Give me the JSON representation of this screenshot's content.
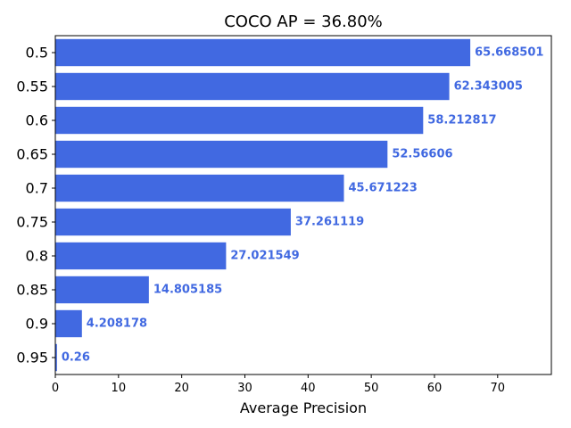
{
  "chart_data": {
    "type": "bar",
    "orientation": "horizontal",
    "title": "COCO AP = 36.80%",
    "xlabel": "Average Precision",
    "ylabel": "",
    "categories": [
      "0.5",
      "0.55",
      "0.6",
      "0.65",
      "0.7",
      "0.75",
      "0.8",
      "0.85",
      "0.9",
      "0.95"
    ],
    "values": [
      65.668501,
      62.343005,
      58.212817,
      52.56606,
      45.671223,
      37.261119,
      27.021549,
      14.805185,
      4.208178,
      0.26
    ],
    "value_labels": [
      "65.668501",
      "62.343005",
      "58.212817",
      "52.56606",
      "45.671223",
      "37.261119",
      "27.021549",
      "14.805185",
      "4.208178",
      "0.26"
    ],
    "xlim": [
      0,
      78.5
    ],
    "xticks": [
      0,
      10,
      20,
      30,
      40,
      50,
      60,
      70
    ],
    "grid": false,
    "bar_color": "#4169e1",
    "label_color": "#4169e1"
  }
}
